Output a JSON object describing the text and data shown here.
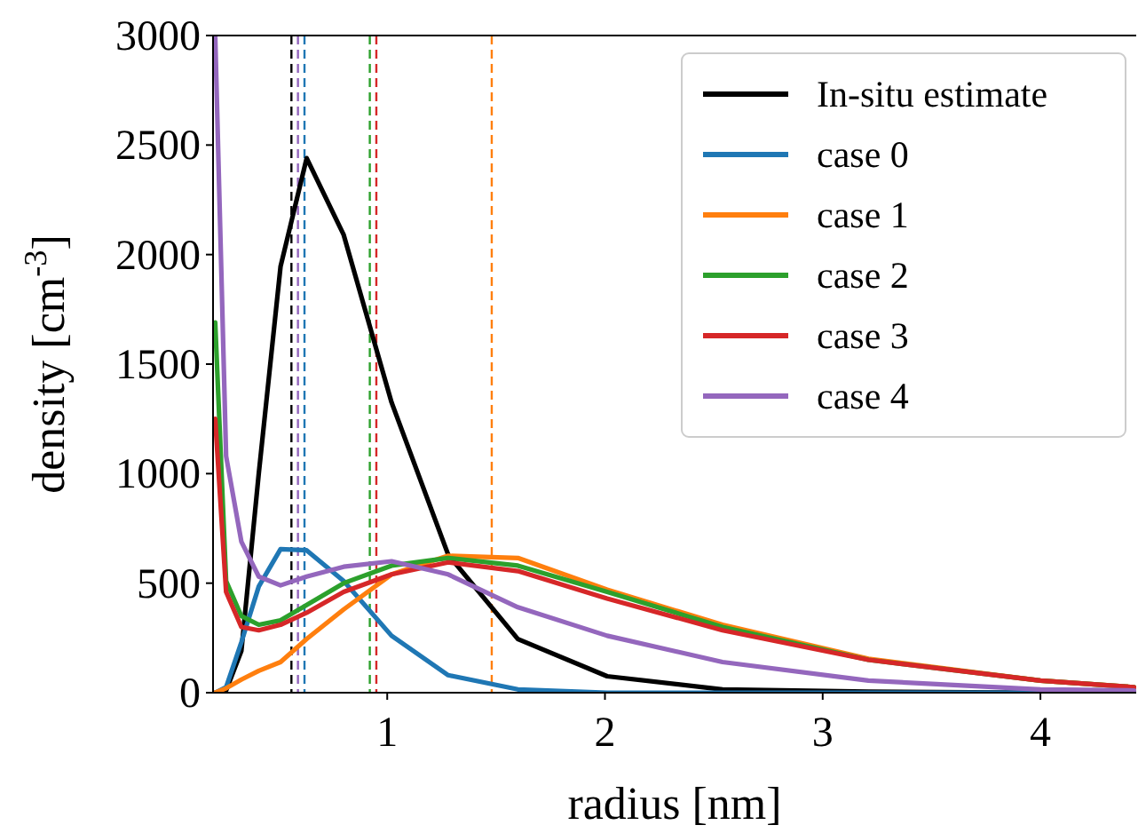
{
  "chart_data": {
    "type": "line",
    "xlabel": "radius [nm]",
    "ylabel": "density [cm$^{-3}$]",
    "x": [
      0.21,
      0.26,
      0.33,
      0.41,
      0.51,
      0.63,
      0.8,
      1.02,
      1.28,
      1.6,
      2.01,
      2.54,
      3.21,
      4.0,
      4.43
    ],
    "xlim": [
      0.2,
      4.44
    ],
    "ylim": [
      0,
      3000
    ],
    "xticks": [
      1,
      2,
      3,
      4
    ],
    "yticks": [
      0,
      500,
      1000,
      1500,
      2000,
      2500,
      3000
    ],
    "grid": false,
    "legend": "top right",
    "marker": "none",
    "line_style": "solid",
    "series": [
      {
        "name": "In-situ estimate",
        "color": "#000000",
        "values": [
          0,
          10,
          190,
          1000,
          1945,
          2440,
          2090,
          1325,
          630,
          245,
          75,
          15,
          5,
          0,
          0
        ]
      },
      {
        "name": "case 0",
        "color": "#1f77b4",
        "values": [
          0,
          25,
          230,
          485,
          655,
          650,
          510,
          260,
          80,
          15,
          0,
          0,
          0,
          0,
          0
        ]
      },
      {
        "name": "case 1",
        "color": "#ff7f0e",
        "values": [
          0,
          20,
          60,
          100,
          140,
          245,
          380,
          540,
          625,
          615,
          470,
          310,
          155,
          55,
          25
        ]
      },
      {
        "name": "case 2",
        "color": "#2ca02c",
        "values": [
          1690,
          510,
          350,
          310,
          330,
          400,
          500,
          580,
          615,
          580,
          460,
          300,
          150,
          55,
          25
        ]
      },
      {
        "name": "case 3",
        "color": "#d62728",
        "values": [
          1250,
          460,
          300,
          285,
          310,
          365,
          460,
          540,
          595,
          555,
          430,
          285,
          150,
          55,
          25
        ]
      },
      {
        "name": "case 4",
        "color": "#9467bd",
        "values": [
          3000,
          1080,
          690,
          530,
          490,
          530,
          575,
          600,
          540,
          390,
          260,
          140,
          55,
          15,
          10
        ]
      }
    ],
    "ref_lines": [
      {
        "axis": "x",
        "value": 0.56,
        "color": "#000000",
        "line_style": "dashed"
      },
      {
        "axis": "x",
        "value": 0.59,
        "color": "#9467bd",
        "line_style": "dashed"
      },
      {
        "axis": "x",
        "value": 0.62,
        "color": "#1f77b4",
        "line_style": "dashed"
      },
      {
        "axis": "x",
        "value": 0.92,
        "color": "#2ca02c",
        "line_style": "dashed"
      },
      {
        "axis": "x",
        "value": 0.95,
        "color": "#d62728",
        "line_style": "dashed"
      },
      {
        "axis": "x",
        "value": 1.48,
        "color": "#ff7f0e",
        "line_style": "dashed"
      }
    ]
  }
}
